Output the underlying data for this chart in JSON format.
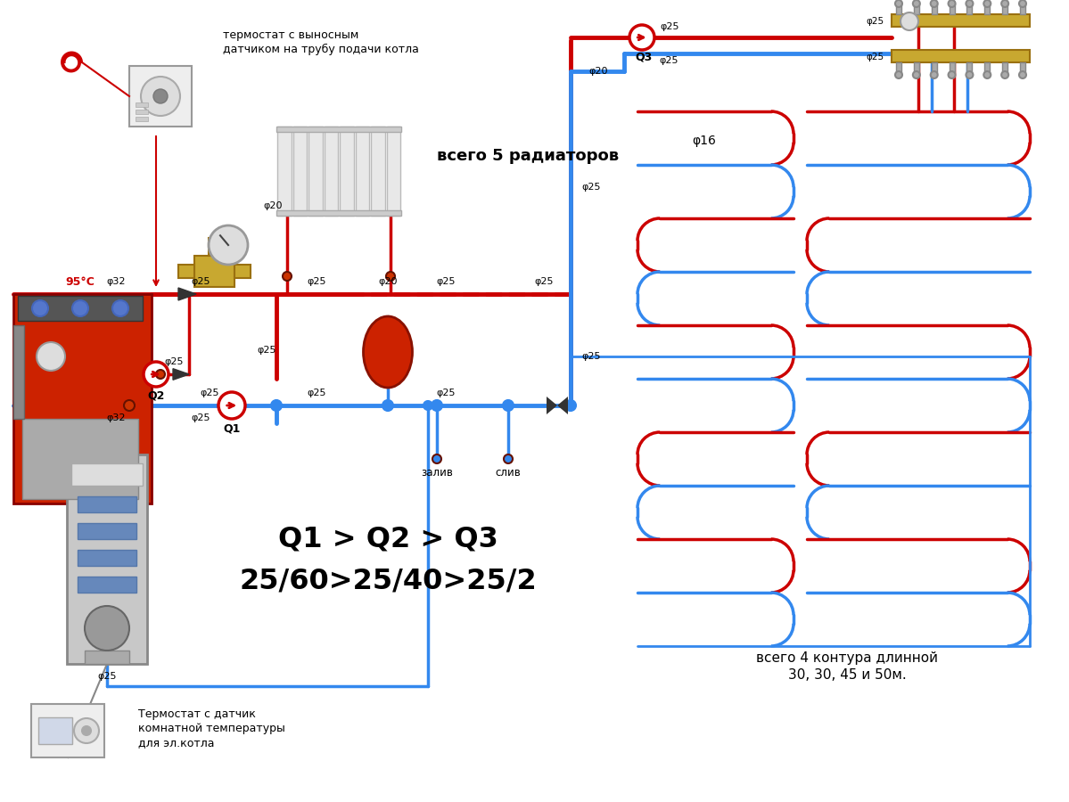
{
  "bg": "#ffffff",
  "red": "#cc0000",
  "blue": "#3388ee",
  "black": "#111111",
  "gray_boiler": "#cc2200",
  "gray_eb": "#c0c0c0",
  "brass": "#c8a830",
  "lw_main": 3.5,
  "lw_thin": 2.5,
  "texts": {
    "thermostat_top1": "термостат с выносным",
    "thermostat_top2": "датчиком на трубу подачи котла",
    "radiators": "всего 5 радиаторов",
    "floor1": "всего 4 контура длинной",
    "floor2": "30, 30, 45 и 50м.",
    "q_text1": "Q1 > Q2 > Q3",
    "q_text2": "25/60>25/40>25/2",
    "thermostat_bot1": "Термостат с датчик",
    "thermostat_bot2": "комнатной температуры",
    "thermostat_bot3": "для эл.котла",
    "temp": "95°C",
    "q1": "Q1",
    "q2": "Q2",
    "q3": "Q3",
    "zaliv": "залив",
    "sliv": "слив",
    "phi32": "φ32",
    "phi25": "φ25",
    "phi20": "φ20",
    "phi16": "φ16"
  }
}
